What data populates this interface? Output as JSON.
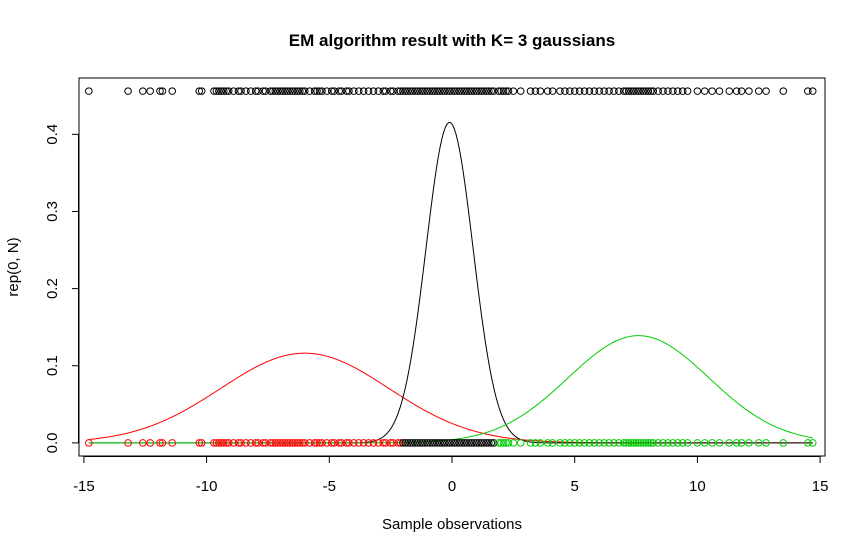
{
  "chart_data": {
    "type": "scatter",
    "title": "EM algorithm result with K= 3  gaussians",
    "xlabel": "Sample observations",
    "ylabel": "rep(0, N)",
    "xlim": [
      -15.2,
      15.2
    ],
    "ylim": [
      -0.017,
      0.473
    ],
    "x_ticks": [
      -15,
      -10,
      -5,
      0,
      5,
      10,
      15
    ],
    "y_ticks": [
      0.0,
      0.1,
      0.2,
      0.3,
      0.4
    ],
    "grid": false,
    "legend": "none",
    "top_rug_y": 0.456,
    "bottom_rug_y": 0.0,
    "components": [
      {
        "mean": -6.0,
        "sd": 3.43,
        "weight": 1.0,
        "color": "#ff0000"
      },
      {
        "mean": -0.1,
        "sd": 0.96,
        "weight": 1.0,
        "color": "#000000"
      },
      {
        "mean": 7.6,
        "sd": 2.87,
        "weight": 1.0,
        "color": "#00cd00"
      }
    ],
    "points_red": [
      -14.8,
      -13.2,
      -12.6,
      -12.3,
      -11.9,
      -11.8,
      -11.4,
      -10.3,
      -10.2,
      -9.7,
      -9.6,
      -9.5,
      -9.4,
      -9.3,
      -9.2,
      -9.1,
      -8.9,
      -8.7,
      -8.6,
      -8.4,
      -8.2,
      -8.0,
      -7.9,
      -7.7,
      -7.6,
      -7.4,
      -7.3,
      -7.2,
      -7.1,
      -7.0,
      -6.9,
      -6.8,
      -6.7,
      -6.6,
      -6.5,
      -6.4,
      -6.3,
      -6.2,
      -6.1,
      -6.0,
      -5.8,
      -5.6,
      -5.5,
      -5.4,
      -5.3,
      -5.1,
      -4.9,
      -4.8,
      -4.6,
      -4.5,
      -4.3,
      -4.2,
      -4.0,
      -3.8,
      -3.6,
      -3.4,
      -3.2,
      -3.0,
      -2.8,
      -2.7,
      -2.5,
      -2.4,
      -2.2,
      -2.1
    ],
    "points_black": [
      -2.0,
      -1.9,
      -1.8,
      -1.7,
      -1.6,
      -1.5,
      -1.4,
      -1.3,
      -1.2,
      -1.1,
      -1.0,
      -0.9,
      -0.8,
      -0.7,
      -0.6,
      -0.5,
      -0.4,
      -0.3,
      -0.2,
      -0.1,
      0.0,
      0.1,
      0.2,
      0.3,
      0.4,
      0.5,
      0.6,
      0.7,
      0.8,
      0.9,
      1.0,
      1.1,
      1.2,
      1.3,
      1.4,
      1.5,
      1.6,
      1.7
    ],
    "points_green": [
      1.9,
      2.0,
      2.1,
      2.2,
      2.3,
      2.5,
      2.8,
      3.2,
      3.4,
      3.6,
      3.9,
      4.1,
      4.4,
      4.6,
      4.8,
      5.0,
      5.2,
      5.4,
      5.6,
      5.8,
      6.0,
      6.2,
      6.4,
      6.6,
      6.8,
      7.0,
      7.1,
      7.2,
      7.3,
      7.4,
      7.5,
      7.6,
      7.7,
      7.8,
      7.9,
      8.0,
      8.1,
      8.2,
      8.4,
      8.6,
      8.8,
      9.0,
      9.2,
      9.4,
      9.6,
      10.0,
      10.3,
      10.6,
      10.9,
      11.3,
      11.6,
      11.8,
      12.1,
      12.5,
      12.8,
      13.5,
      14.5,
      14.7
    ],
    "point_colors": {
      "red": "#ff0000",
      "black": "#000000",
      "green": "#00cd00"
    }
  }
}
